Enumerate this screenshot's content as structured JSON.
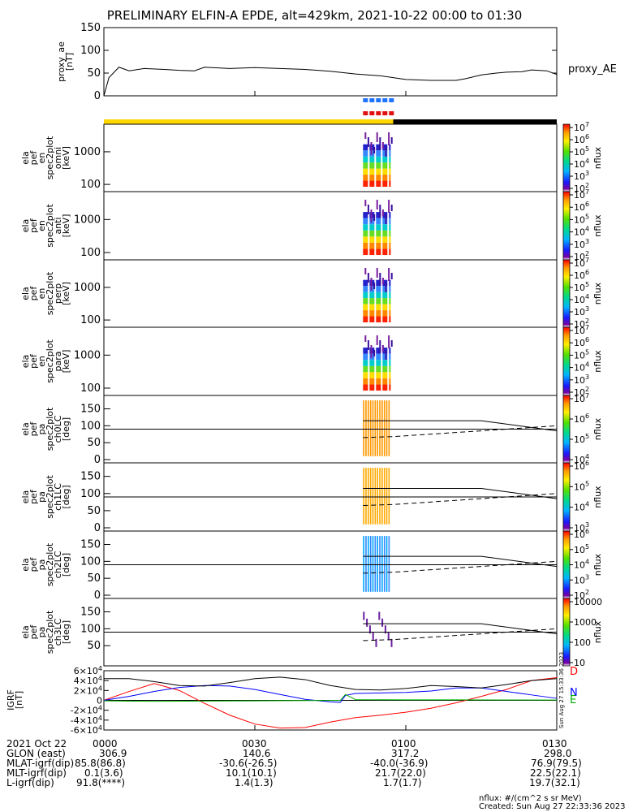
{
  "title": "PRELIMINARY ELFIN-A EPDE, alt=429km, 2021-10-22 00:00 to 01:30",
  "chart_data": {
    "type": "line",
    "time_range": [
      "2021-10-22 00:00",
      "2021-10-22 01:30"
    ],
    "x_tick_labels": [
      "0000",
      "0030",
      "0100",
      "0130"
    ],
    "ae_panel": {
      "ylabel": "proxy_ae [nT]",
      "ylim": [
        0,
        150
      ],
      "yticks": [
        "150",
        "100",
        "50",
        "0"
      ],
      "legend": "proxy_AE",
      "series": [
        {
          "name": "proxy_AE",
          "x": [
            0,
            1,
            3,
            5,
            8,
            12,
            15,
            18,
            20,
            25,
            30,
            35,
            40,
            45,
            50,
            55,
            60,
            65,
            70,
            72,
            75,
            78,
            80,
            83,
            85,
            88,
            90
          ],
          "y": [
            0,
            40,
            63,
            55,
            60,
            58,
            56,
            55,
            63,
            60,
            62,
            60,
            58,
            54,
            48,
            44,
            36,
            34,
            34,
            38,
            46,
            50,
            52,
            53,
            57,
            55,
            47
          ]
        }
      ]
    },
    "science_bar": {
      "blue_start_min": 51.5,
      "blue_end_min": 57.0,
      "red_start_min": 51.5,
      "red_end_min": 57.0
    },
    "day_night_bar": {
      "yellow_until_min": 57.5
    },
    "spectrogram_panels": [
      {
        "ylabel": [
          "ela",
          "pef",
          "en",
          "spec2plot",
          "omni",
          "[keV]"
        ],
        "yticks": [
          "1000",
          "100"
        ],
        "cbar_ticks": [
          "10^7",
          "10^6",
          "10^5",
          "10^4",
          "10^3",
          "10^2"
        ],
        "cbar_label": "nflux"
      },
      {
        "ylabel": [
          "ela",
          "pef",
          "en",
          "spec2plot",
          "anti",
          "[keV]"
        ],
        "yticks": [
          "1000",
          "100"
        ],
        "cbar_ticks": [
          "10^7",
          "10^6",
          "10^5",
          "10^4",
          "10^3",
          "10^2"
        ],
        "cbar_label": "nflux"
      },
      {
        "ylabel": [
          "ela",
          "pef",
          "en",
          "spec2plot",
          "perp",
          "[keV]"
        ],
        "yticks": [
          "1000",
          "100"
        ],
        "cbar_ticks": [
          "10^7",
          "10^6",
          "10^5",
          "10^4",
          "10^3",
          "10^2"
        ],
        "cbar_label": "nflux"
      },
      {
        "ylabel": [
          "ela",
          "pef",
          "en",
          "spec2plot",
          "para",
          "[keV]"
        ],
        "yticks": [
          "1000",
          "100"
        ],
        "cbar_ticks": [
          "10^7",
          "10^6",
          "10^5",
          "10^4",
          "10^3",
          "10^2"
        ],
        "cbar_label": "nflux"
      }
    ],
    "pitch_angle_panels": [
      {
        "ylabel": [
          "ela",
          "pef",
          "pa",
          "spec2plot",
          "ch0LC",
          "[deg]"
        ],
        "yticks": [
          "150",
          "100",
          "50",
          "0"
        ],
        "cbar_ticks": [
          "10^7",
          "10^6",
          "10^5",
          "10^4"
        ],
        "cbar_label": "nflux"
      },
      {
        "ylabel": [
          "ela",
          "pef",
          "pa",
          "spec2plot",
          "ch1LC",
          "[deg]"
        ],
        "yticks": [
          "150",
          "100",
          "50",
          "0"
        ],
        "cbar_ticks": [
          "10^6",
          "10^5",
          "10^4",
          "10^3"
        ],
        "cbar_label": "nflux"
      },
      {
        "ylabel": [
          "ela",
          "pef",
          "pa",
          "spec2plot",
          "ch2LC",
          "[deg]"
        ],
        "yticks": [
          "150",
          "100",
          "50",
          "0"
        ],
        "cbar_ticks": [
          "10^6",
          "10^5",
          "10^4",
          "10^3",
          "10^2"
        ],
        "cbar_label": "nflux"
      },
      {
        "ylabel": [
          "ela",
          "pef",
          "pa",
          "spec2plot",
          "ch3LC",
          "[deg]"
        ],
        "yticks": [
          "150",
          "100",
          "50"
        ],
        "cbar_ticks": [
          "10000",
          "1000",
          "100",
          "10"
        ],
        "cbar_label": "nflux"
      }
    ],
    "pa_reference_lines": {
      "solid_90": 90,
      "loss_cone_solid": {
        "x": [
          51.5,
          57.5,
          75.0,
          90.0
        ],
        "y": [
          115,
          115,
          115,
          85
        ]
      },
      "loss_cone_dashed": {
        "x": [
          51.5,
          57.5,
          75.0,
          90.0
        ],
        "y": [
          65,
          68,
          85,
          100
        ]
      }
    },
    "igrf_panel": {
      "ylabel": "IGRF [nT]",
      "ylim": [
        -60000,
        60000
      ],
      "yticks": [
        "6x10^4",
        "4x10^4",
        "2x10^4",
        "0",
        "-2x10^4",
        "-4x10^4",
        "-6x10^4"
      ],
      "legend": [
        "D",
        "N",
        "E"
      ],
      "series": [
        {
          "name": "D",
          "x": [
            0,
            5,
            10,
            15,
            20,
            25,
            30,
            35,
            40,
            45,
            50,
            55,
            60,
            65,
            70,
            75,
            80,
            85,
            90
          ],
          "y": [
            0,
            18000,
            34000,
            20000,
            -6000,
            -30000,
            -48000,
            -56000,
            -55000,
            -44000,
            -35000,
            -30000,
            -24000,
            -16000,
            -5000,
            8000,
            22000,
            40000,
            46000
          ]
        },
        {
          "name": "N",
          "x": [
            0,
            5,
            10,
            15,
            20,
            25,
            30,
            35,
            40,
            45,
            47,
            48,
            50,
            55,
            60,
            65,
            70,
            75,
            80,
            85,
            90
          ],
          "y": [
            0,
            8000,
            18000,
            26000,
            30000,
            29000,
            22000,
            12000,
            2000,
            -3000,
            -4000,
            10000,
            14000,
            15000,
            16000,
            19000,
            25000,
            25000,
            18000,
            11000,
            4000
          ]
        },
        {
          "name": "E",
          "x": [
            0,
            10,
            20,
            30,
            40,
            45,
            47,
            48,
            50,
            60,
            70,
            80,
            90
          ],
          "y": [
            -1000,
            -2000,
            -1500,
            -1000,
            -500,
            -200,
            0,
            12000,
            1500,
            1000,
            1000,
            800,
            600
          ]
        },
        {
          "name": "",
          "x": [
            0,
            5,
            10,
            15,
            20,
            25,
            30,
            35,
            40,
            45,
            50,
            55,
            60,
            65,
            70,
            75,
            80,
            85,
            90
          ],
          "y": [
            44000,
            44000,
            38000,
            30000,
            29000,
            36000,
            44000,
            47000,
            42000,
            30000,
            22000,
            21000,
            24000,
            30000,
            28000,
            25000,
            32000,
            40000,
            44000
          ]
        }
      ]
    }
  },
  "labels": {
    "proxy_ae": "proxy_ae",
    "nT": "[nT]",
    "legend_proxy_ae": "proxy_AE",
    "igrf": "IGRF",
    "nT2": "[nT]",
    "cbar_label": "nflux",
    "legend_D": "D",
    "legend_N": "N",
    "legend_E": "E",
    "side_stamp": "Sun Aug 27 15:33:36 2023"
  },
  "bottom": {
    "rows": [
      {
        "label": "2021 Oct 22",
        "values": [
          "0000",
          "0030",
          "0100",
          "0130"
        ]
      },
      {
        "label": "GLON (east)",
        "values": [
          "306.9",
          "140.6",
          "317.2",
          "298.0"
        ]
      },
      {
        "label": "MLAT-igrf(dip)",
        "values": [
          "85.8(86.8)",
          "-30.6(-26.5)",
          "-40.0(-36.9)",
          "76.9(79.5)"
        ]
      },
      {
        "label": "MLT-igrf(dip)",
        "values": [
          "0.1(3.6)",
          "10.1(10.1)",
          "21.7(22.0)",
          "22.5(22.1)"
        ]
      },
      {
        "label": "L-igrf(dip)",
        "values": [
          "91.8(****)",
          "1.4(1.3)",
          "1.7(1.7)",
          "19.7(32.1)"
        ]
      }
    ],
    "units_note": "nflux: #/(cm^2 s sr MeV)",
    "created": "Created: Sun Aug 27 22:33:36 2023"
  }
}
